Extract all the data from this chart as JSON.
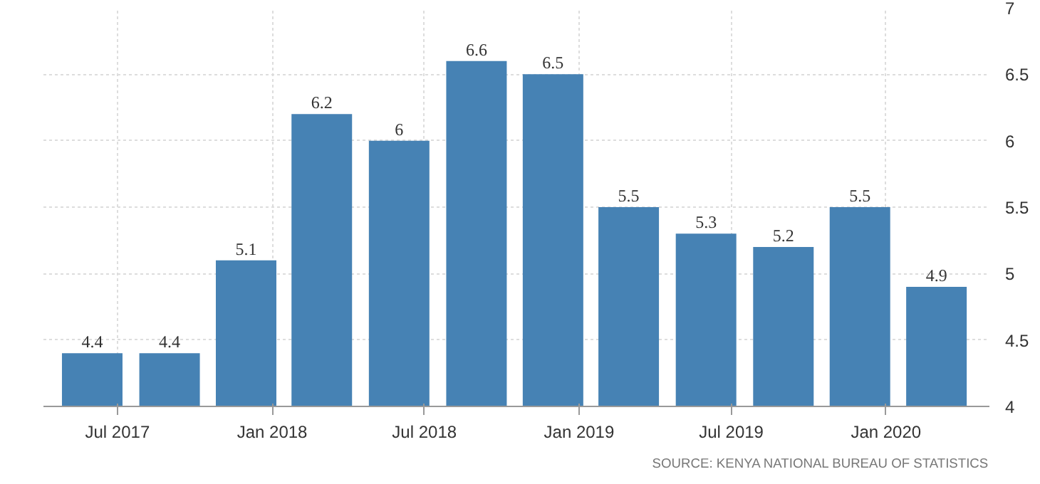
{
  "chart_data": {
    "type": "bar",
    "color": "#4682b4",
    "x": [
      "2017-06",
      "2017-09",
      "2017-12",
      "2018-03",
      "2018-06",
      "2018-09",
      "2018-12",
      "2019-03",
      "2019-06",
      "2019-09",
      "2019-12",
      "2020-03"
    ],
    "values": [
      4.4,
      4.4,
      5.1,
      6.2,
      6,
      6.6,
      6.5,
      5.5,
      5.3,
      5.2,
      5.5,
      4.9
    ],
    "data_labels": true,
    "xlim": [
      "2017-04-04",
      "2020-05-03"
    ],
    "xticks": [
      {
        "value": "2017-07",
        "label": "Jul 2017"
      },
      {
        "value": "2018-01",
        "label": "Jan 2018"
      },
      {
        "value": "2018-07",
        "label": "Jul 2018"
      },
      {
        "value": "2019-01",
        "label": "Jan 2019"
      },
      {
        "value": "2019-07",
        "label": "Jul 2019"
      },
      {
        "value": "2020-01",
        "label": "Jan 2020"
      }
    ],
    "ylim": [
      4,
      7
    ],
    "yticks": [
      4,
      4.5,
      5,
      5.5,
      6,
      6.5,
      7
    ],
    "grid": true,
    "annotations": [
      "SOURCE: KENYA NATIONAL BUREAU OF STATISTICS"
    ]
  }
}
